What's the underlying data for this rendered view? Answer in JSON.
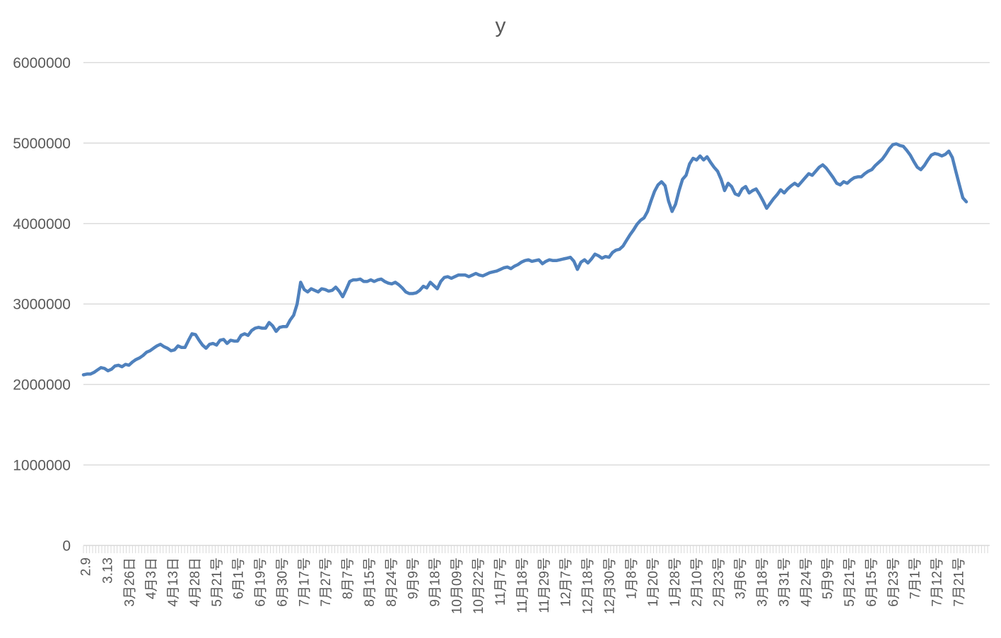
{
  "colors": {
    "line": "#4F81BD",
    "grid": "#D9D9D9",
    "axis": "#D9D9D9",
    "tick": "#D9D9D9",
    "label_text": "#595959",
    "background": "#FFFFFF"
  },
  "chart_data": {
    "type": "line",
    "title": "y",
    "xlabel": "",
    "ylabel": "",
    "legend": "none",
    "grid": "horizontal",
    "ylim": [
      0,
      6000000
    ],
    "y_ticks": [
      0,
      1000000,
      2000000,
      3000000,
      4000000,
      5000000,
      6000000
    ],
    "x_tick_labels": [
      "2.9",
      "3.13",
      "3月26日",
      "4月3日",
      "4月13日",
      "4月28日",
      "5月21号",
      "6月1号",
      "6月19号",
      "6月30号",
      "7月17号",
      "7月27号",
      "8月7号",
      "8月15号",
      "8月24号",
      "9月9号",
      "9月18号",
      "10月09号",
      "10月22号",
      "11月7号",
      "11月18号",
      "11月29号",
      "12月7号",
      "12月18号",
      "12月30号",
      "1月8号",
      "1月20号",
      "1月28号",
      "2月10号",
      "2月23号",
      "3月6号",
      "3月18号",
      "3月31号",
      "4月24号",
      "5月9号",
      "5月21号",
      "6月15号",
      "6月23号",
      "7月1号",
      "7月12号",
      "7月21号"
    ],
    "series": [
      {
        "name": "y",
        "values": [
          2120000,
          2130000,
          2130000,
          2150000,
          2180000,
          2210000,
          2200000,
          2170000,
          2190000,
          2230000,
          2240000,
          2220000,
          2250000,
          2240000,
          2280000,
          2310000,
          2330000,
          2360000,
          2400000,
          2420000,
          2450000,
          2480000,
          2500000,
          2470000,
          2450000,
          2420000,
          2430000,
          2480000,
          2460000,
          2460000,
          2550000,
          2630000,
          2620000,
          2550000,
          2490000,
          2450000,
          2500000,
          2510000,
          2490000,
          2550000,
          2560000,
          2510000,
          2550000,
          2540000,
          2540000,
          2610000,
          2630000,
          2610000,
          2670000,
          2700000,
          2710000,
          2700000,
          2700000,
          2770000,
          2730000,
          2660000,
          2710000,
          2720000,
          2720000,
          2800000,
          2860000,
          3000000,
          3270000,
          3180000,
          3150000,
          3190000,
          3170000,
          3150000,
          3190000,
          3180000,
          3160000,
          3170000,
          3210000,
          3160000,
          3090000,
          3180000,
          3280000,
          3300000,
          3300000,
          3310000,
          3280000,
          3280000,
          3300000,
          3280000,
          3300000,
          3310000,
          3280000,
          3260000,
          3250000,
          3270000,
          3240000,
          3200000,
          3150000,
          3130000,
          3130000,
          3140000,
          3170000,
          3220000,
          3200000,
          3270000,
          3230000,
          3190000,
          3280000,
          3330000,
          3340000,
          3320000,
          3340000,
          3360000,
          3360000,
          3360000,
          3340000,
          3360000,
          3380000,
          3360000,
          3350000,
          3370000,
          3390000,
          3400000,
          3410000,
          3430000,
          3450000,
          3460000,
          3440000,
          3470000,
          3490000,
          3520000,
          3540000,
          3550000,
          3530000,
          3540000,
          3550000,
          3500000,
          3530000,
          3550000,
          3540000,
          3540000,
          3550000,
          3560000,
          3570000,
          3580000,
          3530000,
          3430000,
          3520000,
          3550000,
          3510000,
          3560000,
          3620000,
          3600000,
          3570000,
          3590000,
          3580000,
          3640000,
          3670000,
          3680000,
          3720000,
          3790000,
          3860000,
          3920000,
          3990000,
          4040000,
          4070000,
          4150000,
          4280000,
          4400000,
          4480000,
          4520000,
          4470000,
          4280000,
          4150000,
          4240000,
          4410000,
          4550000,
          4600000,
          4740000,
          4810000,
          4790000,
          4840000,
          4790000,
          4830000,
          4760000,
          4700000,
          4650000,
          4550000,
          4410000,
          4500000,
          4460000,
          4370000,
          4350000,
          4430000,
          4460000,
          4380000,
          4410000,
          4430000,
          4360000,
          4280000,
          4190000,
          4250000,
          4310000,
          4360000,
          4420000,
          4380000,
          4430000,
          4470000,
          4500000,
          4470000,
          4520000,
          4570000,
          4620000,
          4600000,
          4650000,
          4700000,
          4730000,
          4690000,
          4630000,
          4570000,
          4500000,
          4480000,
          4520000,
          4500000,
          4540000,
          4570000,
          4580000,
          4580000,
          4620000,
          4650000,
          4670000,
          4720000,
          4760000,
          4800000,
          4860000,
          4930000,
          4980000,
          4990000,
          4970000,
          4960000,
          4910000,
          4850000,
          4770000,
          4700000,
          4670000,
          4720000,
          4790000,
          4850000,
          4870000,
          4860000,
          4840000,
          4860000,
          4900000,
          4820000,
          4650000,
          4480000,
          4320000,
          4270000
        ]
      }
    ]
  }
}
